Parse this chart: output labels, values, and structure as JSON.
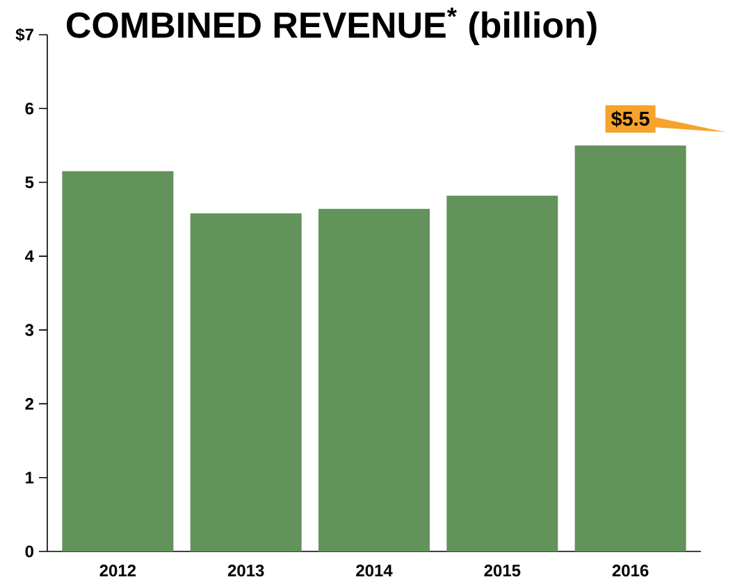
{
  "chart_data": {
    "type": "bar",
    "title": "COMBINED REVENUE$^{*}$ (billion)",
    "categories": [
      "2012",
      "2013",
      "2014",
      "2015",
      "2016"
    ],
    "values": [
      5.15,
      4.58,
      4.64,
      4.82,
      5.5
    ],
    "value_labels": [
      null,
      null,
      null,
      null,
      "$5.5"
    ],
    "color": "#62935a",
    "ylim": [
      0,
      7
    ],
    "yticks": [
      0,
      1,
      2,
      3,
      4,
      5,
      6,
      {
        "value": 7,
        "label": "$7"
      }
    ],
    "grid": false
  }
}
